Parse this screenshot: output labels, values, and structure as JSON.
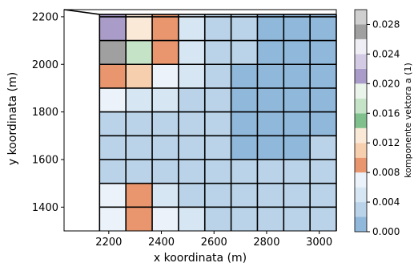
{
  "chart_data": {
    "type": "heatmap",
    "title": "",
    "xlabel": "x koordinata (m)",
    "ylabel": "y koordinata (m)",
    "xlim": [
      2030,
      3065
    ],
    "ylim": [
      1300,
      2230
    ],
    "x_ticks": [
      2200,
      2400,
      2600,
      2800,
      3000
    ],
    "y_ticks": [
      1400,
      1600,
      1800,
      2000,
      2200
    ],
    "x_tick_labels": [
      "2200",
      "2400",
      "2600",
      "2800",
      "3000"
    ],
    "y_tick_labels": [
      "1400",
      "1600",
      "1800",
      "2000",
      "2200"
    ],
    "grid_x": [
      2165,
      2265,
      2365,
      2465,
      2565,
      2665,
      2765,
      2865,
      2965,
      3065
    ],
    "grid_y": [
      1300,
      1400,
      1500,
      1600,
      1700,
      1800,
      1900,
      2000,
      2100,
      2200
    ],
    "domain_top_edge": [
      [
        2030,
        2230
      ],
      [
        2165,
        2210
      ],
      [
        3065,
        2210
      ]
    ],
    "grid": true,
    "colorbar": {
      "label": "komponente vektora a (1)",
      "vmin": 0.0,
      "vmax": 0.03,
      "tick_values": [
        0.0,
        0.004,
        0.008,
        0.012,
        0.016,
        0.02,
        0.024,
        0.028
      ],
      "tick_labels": [
        "0.000",
        "0.004",
        "0.008",
        "0.012",
        "0.016",
        "0.020",
        "0.024",
        "0.028"
      ],
      "levels": [
        0.0,
        0.002,
        0.004,
        0.006,
        0.008,
        0.01,
        0.012,
        0.014,
        0.016,
        0.018,
        0.02,
        0.022,
        0.024,
        0.026,
        0.028,
        0.03
      ],
      "colors": [
        "#8fb8da",
        "#bad3e8",
        "#d7e6f3",
        "#ebf2f9",
        "#e9966e",
        "#f6cfae",
        "#fbe9d8",
        "#7fc08c",
        "#c5e4c7",
        "#eaf4ea",
        "#a99cc9",
        "#d2cbe3",
        "#f0eef5",
        "#a0a0a0",
        "#cfcfcf"
      ]
    },
    "values": [
      [
        0.007,
        0.008,
        0.007,
        0.004,
        0.003,
        0.003,
        0.003,
        0.003,
        0.003
      ],
      [
        0.007,
        0.008,
        0.005,
        0.003,
        0.003,
        0.003,
        0.003,
        0.003,
        0.003
      ],
      [
        0.003,
        0.003,
        0.003,
        0.003,
        0.003,
        0.003,
        0.002,
        0.003,
        0.003
      ],
      [
        0.003,
        0.003,
        0.003,
        0.003,
        0.003,
        0.001,
        0.001,
        0.001,
        0.002
      ],
      [
        0.003,
        0.003,
        0.003,
        0.003,
        0.003,
        0.001,
        0.001,
        0.001,
        0.001
      ],
      [
        0.007,
        0.005,
        0.005,
        0.003,
        0.003,
        0.001,
        0.001,
        0.001,
        0.001
      ],
      [
        0.009,
        0.01,
        0.007,
        0.004,
        0.003,
        0.001,
        0.001,
        0.001,
        0.001
      ],
      [
        0.026,
        0.016,
        0.008,
        0.004,
        0.003,
        0.002,
        0.001,
        0.001,
        0.001
      ],
      [
        0.021,
        0.013,
        0.008,
        0.004,
        0.003,
        0.002,
        0.001,
        0.001,
        0.001
      ]
    ]
  }
}
